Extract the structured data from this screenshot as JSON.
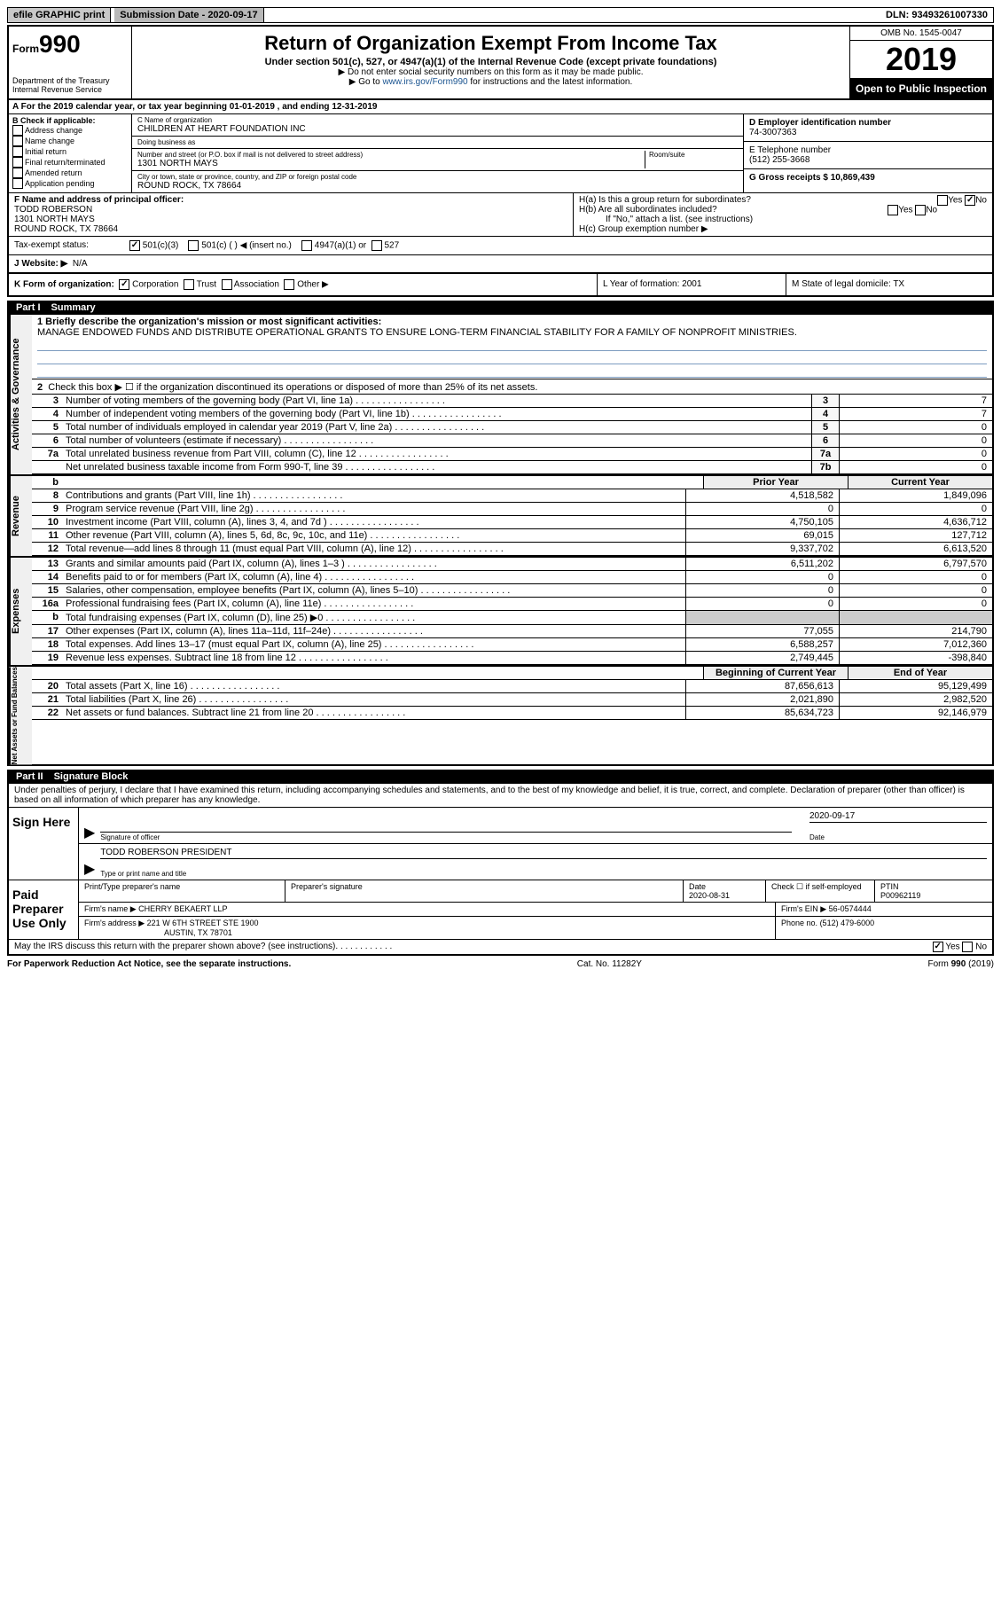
{
  "top": {
    "efile": "efile GRAPHIC print",
    "submission": "Submission Date - 2020-09-17",
    "dln": "DLN: 93493261007330"
  },
  "header": {
    "form_prefix": "Form",
    "form_num": "990",
    "dept": "Department of the Treasury\nInternal Revenue Service",
    "title": "Return of Organization Exempt From Income Tax",
    "sub": "Under section 501(c), 527, or 4947(a)(1) of the Internal Revenue Code (except private foundations)",
    "line1": "▶ Do not enter social security numbers on this form as it may be made public.",
    "line2_pre": "▶ Go to ",
    "line2_link": "www.irs.gov/Form990",
    "line2_post": " for instructions and the latest information.",
    "omb": "OMB No. 1545-0047",
    "year": "2019",
    "open_public": "Open to Public Inspection"
  },
  "rowA": "A For the 2019 calendar year, or tax year beginning 01-01-2019    , and ending 12-31-2019",
  "sectionB": {
    "title": "B Check if applicable:",
    "opts": [
      "Address change",
      "Name change",
      "Initial return",
      "Final return/terminated",
      "Amended return",
      "Application pending"
    ],
    "c_name_label": "C Name of organization",
    "c_name": "CHILDREN AT HEART FOUNDATION INC",
    "dba_label": "Doing business as",
    "dba": "",
    "addr_label": "Number and street (or P.O. box if mail is not delivered to street address)",
    "room_label": "Room/suite",
    "addr": "1301 NORTH MAYS",
    "city_label": "City or town, state or province, country, and ZIP or foreign postal code",
    "city": "ROUND ROCK, TX  78664",
    "d_label": "D Employer identification number",
    "d_val": "74-3007363",
    "e_label": "E Telephone number",
    "e_val": "(512) 255-3668",
    "g_label": "G Gross receipts $ 10,869,439"
  },
  "sectionF": {
    "label": "F  Name and address of principal officer:",
    "name": "TODD ROBERSON",
    "addr1": "1301 NORTH MAYS",
    "addr2": "ROUND ROCK, TX  78664",
    "ha": "H(a)  Is this a group return for subordinates?",
    "hb": "H(b)  Are all subordinates included?",
    "hb_note": "If \"No,\" attach a list. (see instructions)",
    "hc": "H(c)  Group exemption number ▶"
  },
  "taxExempt": {
    "label": "Tax-exempt status:",
    "opt1": "501(c)(3)",
    "opt2": "501(c) (  ) ◀ (insert no.)",
    "opt3": "4947(a)(1) or",
    "opt4": "527"
  },
  "website": {
    "label": "J   Website: ▶",
    "val": "N/A"
  },
  "klm": {
    "k": "K Form of organization:",
    "k_opts": [
      "Corporation",
      "Trust",
      "Association",
      "Other ▶"
    ],
    "l": "L Year of formation: 2001",
    "m": "M State of legal domicile: TX"
  },
  "part1": {
    "title": "Part I",
    "name": "Summary",
    "line1": "1  Briefly describe the organization's mission or most significant activities:",
    "mission": "MANAGE ENDOWED FUNDS AND DISTRIBUTE OPERATIONAL GRANTS TO ENSURE LONG-TERM FINANCIAL STABILITY FOR A FAMILY OF NONPROFIT MINISTRIES.",
    "line2": "Check this box ▶ ☐  if the organization discontinued its operations or disposed of more than 25% of its net assets.",
    "sideA": "Activities & Governance",
    "sideR": "Revenue",
    "sideE": "Expenses",
    "sideN": "Net Assets or Fund Balances",
    "rows_gov": [
      {
        "n": "3",
        "d": "Number of voting members of the governing body (Part VI, line 1a)",
        "box": "3",
        "v": "7"
      },
      {
        "n": "4",
        "d": "Number of independent voting members of the governing body (Part VI, line 1b)",
        "box": "4",
        "v": "7"
      },
      {
        "n": "5",
        "d": "Total number of individuals employed in calendar year 2019 (Part V, line 2a)",
        "box": "5",
        "v": "0"
      },
      {
        "n": "6",
        "d": "Total number of volunteers (estimate if necessary)",
        "box": "6",
        "v": "0"
      },
      {
        "n": "7a",
        "d": "Total unrelated business revenue from Part VIII, column (C), line 12",
        "box": "7a",
        "v": "0"
      },
      {
        "n": "",
        "d": "Net unrelated business taxable income from Form 990-T, line 39",
        "box": "7b",
        "v": "0"
      }
    ],
    "col_h1": "Prior Year",
    "col_h2": "Current Year",
    "rows_rev": [
      {
        "n": "8",
        "d": "Contributions and grants (Part VIII, line 1h)",
        "p": "4,518,582",
        "c": "1,849,096"
      },
      {
        "n": "9",
        "d": "Program service revenue (Part VIII, line 2g)",
        "p": "0",
        "c": "0"
      },
      {
        "n": "10",
        "d": "Investment income (Part VIII, column (A), lines 3, 4, and 7d )",
        "p": "4,750,105",
        "c": "4,636,712"
      },
      {
        "n": "11",
        "d": "Other revenue (Part VIII, column (A), lines 5, 6d, 8c, 9c, 10c, and 11e)",
        "p": "69,015",
        "c": "127,712"
      },
      {
        "n": "12",
        "d": "Total revenue—add lines 8 through 11 (must equal Part VIII, column (A), line 12)",
        "p": "9,337,702",
        "c": "6,613,520"
      }
    ],
    "rows_exp": [
      {
        "n": "13",
        "d": "Grants and similar amounts paid (Part IX, column (A), lines 1–3 )",
        "p": "6,511,202",
        "c": "6,797,570"
      },
      {
        "n": "14",
        "d": "Benefits paid to or for members (Part IX, column (A), line 4)",
        "p": "0",
        "c": "0"
      },
      {
        "n": "15",
        "d": "Salaries, other compensation, employee benefits (Part IX, column (A), lines 5–10)",
        "p": "0",
        "c": "0"
      },
      {
        "n": "16a",
        "d": "Professional fundraising fees (Part IX, column (A), line 11e)",
        "p": "0",
        "c": "0"
      },
      {
        "n": "b",
        "d": "Total fundraising expenses (Part IX, column (D), line 25) ▶0",
        "p": "",
        "c": "",
        "shaded": true
      },
      {
        "n": "17",
        "d": "Other expenses (Part IX, column (A), lines 11a–11d, 11f–24e)",
        "p": "77,055",
        "c": "214,790"
      },
      {
        "n": "18",
        "d": "Total expenses. Add lines 13–17 (must equal Part IX, column (A), line 25)",
        "p": "6,588,257",
        "c": "7,012,360"
      },
      {
        "n": "19",
        "d": "Revenue less expenses. Subtract line 18 from line 12",
        "p": "2,749,445",
        "c": "-398,840"
      }
    ],
    "col_h3": "Beginning of Current Year",
    "col_h4": "End of Year",
    "rows_net": [
      {
        "n": "20",
        "d": "Total assets (Part X, line 16)",
        "p": "87,656,613",
        "c": "95,129,499"
      },
      {
        "n": "21",
        "d": "Total liabilities (Part X, line 26)",
        "p": "2,021,890",
        "c": "2,982,520"
      },
      {
        "n": "22",
        "d": "Net assets or fund balances. Subtract line 21 from line 20",
        "p": "85,634,723",
        "c": "92,146,979"
      }
    ]
  },
  "part2": {
    "title": "Part II",
    "name": "Signature Block",
    "penalties": "Under penalties of perjury, I declare that I have examined this return, including accompanying schedules and statements, and to the best of my knowledge and belief, it is true, correct, and complete. Declaration of preparer (other than officer) is based on all information of which preparer has any knowledge.",
    "sign_here": "Sign Here",
    "sig_officer": "Signature of officer",
    "sig_date": "2020-09-17",
    "date_lbl": "Date",
    "typed_name": "TODD ROBERSON  PRESIDENT",
    "typed_lbl": "Type or print name and title",
    "paid": "Paid Preparer Use Only",
    "prep_name_lbl": "Print/Type preparer's name",
    "prep_sig_lbl": "Preparer's signature",
    "prep_date_lbl": "Date",
    "prep_date": "2020-08-31",
    "prep_check": "Check ☐ if self-employed",
    "ptin_lbl": "PTIN",
    "ptin": "P00962119",
    "firm_name_lbl": "Firm's name     ▶",
    "firm_name": "CHERRY BEKAERT LLP",
    "firm_ein_lbl": "Firm's EIN ▶",
    "firm_ein": "56-0574444",
    "firm_addr_lbl": "Firm's address ▶",
    "firm_addr": "221 W 6TH STREET STE 1900",
    "firm_city": "AUSTIN, TX  78701",
    "phone_lbl": "Phone no.",
    "phone": "(512) 479-6000",
    "discuss": "May the IRS discuss this return with the preparer shown above? (see instructions)"
  },
  "footer": {
    "l": "For Paperwork Reduction Act Notice, see the separate instructions.",
    "c": "Cat. No. 11282Y",
    "r": "Form 990 (2019)"
  }
}
